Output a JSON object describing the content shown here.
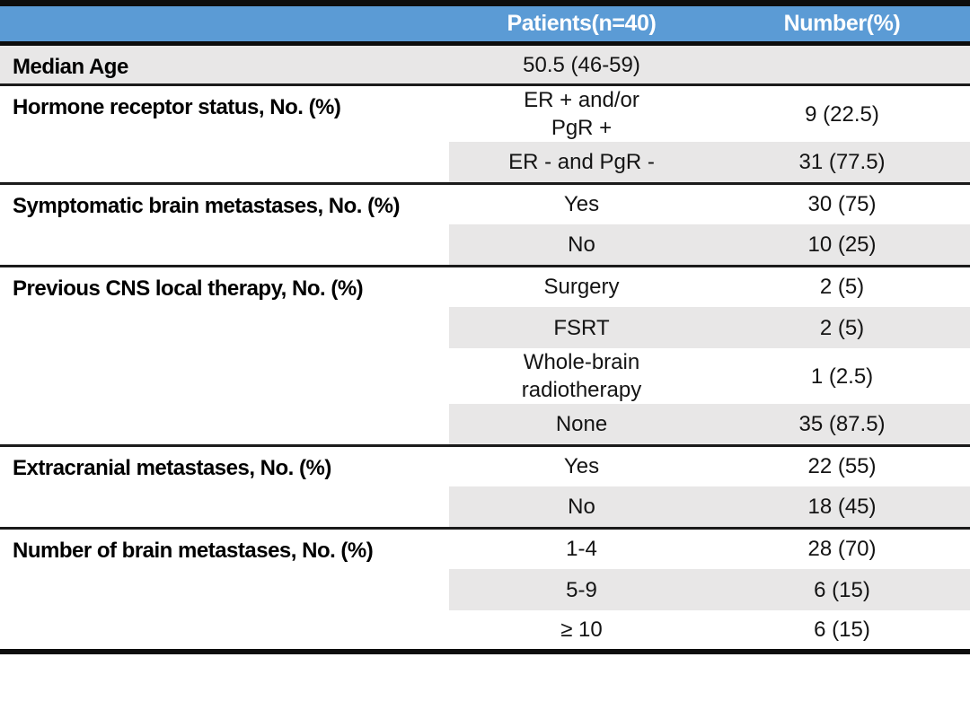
{
  "title": "Patient characteristics table",
  "colors": {
    "header_bg": "#5B9BD5",
    "header_text": "#FFFFFF",
    "stripe": "#E8E7E7",
    "border": "#0D0D0D",
    "text": "#141414"
  },
  "table": {
    "header": {
      "col1": "",
      "col2": "Patients(n=40)",
      "col3": "Number(%)"
    },
    "sections": [
      {
        "label": "Median Age",
        "shade_label": true,
        "rows": [
          {
            "patients": "50.5 (46-59)",
            "number": "",
            "shaded": true
          }
        ]
      },
      {
        "label": "Hormone receptor status, No. (%)",
        "shade_label": false,
        "rows": [
          {
            "patients": "ER + and/or\nPgR +",
            "number": "9 (22.5)",
            "shaded": false
          },
          {
            "patients": "ER - and PgR -",
            "number": "31 (77.5)",
            "shaded": true
          }
        ]
      },
      {
        "label": "Symptomatic brain metastases, No. (%)",
        "shade_label": false,
        "rows": [
          {
            "patients": "Yes",
            "number": "30 (75)",
            "shaded": false
          },
          {
            "patients": "No",
            "number": "10 (25)",
            "shaded": true
          }
        ]
      },
      {
        "label": "Previous CNS local therapy, No. (%)",
        "shade_label": false,
        "rows": [
          {
            "patients": "Surgery",
            "number": "2 (5)",
            "shaded": false
          },
          {
            "patients": "FSRT",
            "number": "2 (5)",
            "shaded": true
          },
          {
            "patients": "Whole-brain\nradiotherapy",
            "number": "1 (2.5)",
            "shaded": false
          },
          {
            "patients": "None",
            "number": "35 (87.5)",
            "shaded": true
          }
        ]
      },
      {
        "label": "Extracranial metastases, No. (%)",
        "shade_label": false,
        "rows": [
          {
            "patients": "Yes",
            "number": "22 (55)",
            "shaded": false
          },
          {
            "patients": "No",
            "number": "18 (45)",
            "shaded": true
          }
        ]
      },
      {
        "label": "Number of brain metastases, No. (%)",
        "shade_label": false,
        "rows": [
          {
            "patients": "1-4",
            "number": "28 (70)",
            "shaded": false
          },
          {
            "patients": "5-9",
            "number": "6 (15)",
            "shaded": true
          },
          {
            "patients": "≥ 10",
            "number": "6 (15)",
            "shaded": false
          }
        ]
      }
    ]
  }
}
